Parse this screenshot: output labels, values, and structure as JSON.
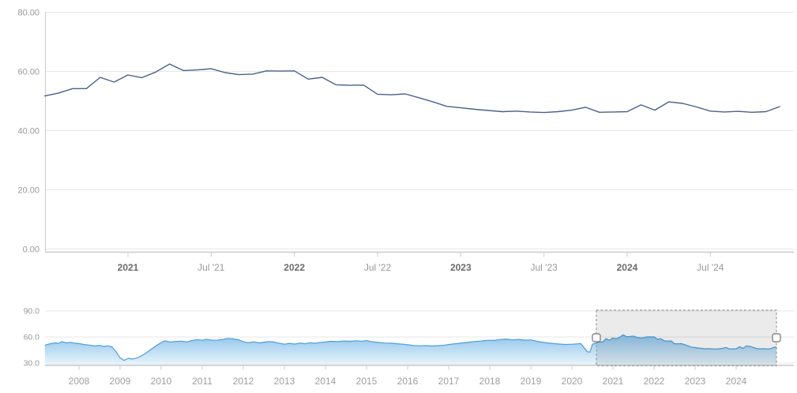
{
  "chart_title": "",
  "colors": {
    "main_line": "#49618a",
    "grid_line": "#e7e7e7",
    "axis_line": "#c9c9c9",
    "tick_line": "#cccccc",
    "label_grey": "#999999",
    "label_year_bold": "#6b6b6b",
    "nav_line": "#4d9eda",
    "nav_fill_top": "#85bfe9",
    "nav_fill_bottom": "#eaf5fc",
    "selection_fill": "rgba(0,0,0,0.08)",
    "selection_border": "#9e9e9e",
    "handle_fill": "#fcfcfc",
    "handle_border": "#878787"
  },
  "chart_data": [
    {
      "type": "line",
      "pane": "main",
      "title": "",
      "xlabel": "",
      "ylabel": "",
      "ylim": [
        0,
        80
      ],
      "grid": true,
      "x_unit": "month",
      "x_start_decimal_year": 2020.5,
      "x_step_decimal_year": 0.083333,
      "x_range_label": "Jul 2020 - Dec 2024",
      "values": [
        51.7,
        52.7,
        54.2,
        54.2,
        58.0,
        56.4,
        58.8,
        57.9,
        59.8,
        62.5,
        60.3,
        60.5,
        60.9,
        59.6,
        58.9,
        59.1,
        60.2,
        60.1,
        60.2,
        57.4,
        58.0,
        55.5,
        55.3,
        55.4,
        52.3,
        52.1,
        52.4,
        51.1,
        49.7,
        48.2,
        47.7,
        47.2,
        46.8,
        46.4,
        46.6,
        46.3,
        46.1,
        46.4,
        46.9,
        47.9,
        46.2,
        46.3,
        46.4,
        48.7,
        46.9,
        49.7,
        49.2,
        48.0,
        46.6,
        46.3,
        46.5,
        46.2,
        46.4,
        48.1
      ],
      "y_ticks": [
        {
          "label": "0.00",
          "v": 0
        },
        {
          "label": "20.00",
          "v": 20
        },
        {
          "label": "40.00",
          "v": 40
        },
        {
          "label": "60.00",
          "v": 60
        },
        {
          "label": "80.00",
          "v": 80
        }
      ],
      "x_ticks": [
        {
          "label": "2021",
          "x": 2021,
          "bold": true
        },
        {
          "label": "Jul '21",
          "x": 2021.5,
          "bold": false
        },
        {
          "label": "2022",
          "x": 2022,
          "bold": true
        },
        {
          "label": "Jul '22",
          "x": 2022.5,
          "bold": false
        },
        {
          "label": "2023",
          "x": 2023,
          "bold": true
        },
        {
          "label": "Jul '23",
          "x": 2023.5,
          "bold": false
        },
        {
          "label": "2024",
          "x": 2024,
          "bold": true
        },
        {
          "label": "Jul '24",
          "x": 2024.5,
          "bold": false
        }
      ]
    },
    {
      "type": "area",
      "pane": "navigator",
      "title": "",
      "ylim_labeled": [
        30,
        90
      ],
      "grid": true,
      "x_unit": "decimal_year",
      "y_ticks": [
        {
          "label": "30.0",
          "v": 30
        },
        {
          "label": "60.0",
          "v": 60
        },
        {
          "label": "90.0",
          "v": 90
        }
      ],
      "x_ticks": [
        {
          "label": "2008",
          "x": 2008
        },
        {
          "label": "2009",
          "x": 2009
        },
        {
          "label": "2010",
          "x": 2010
        },
        {
          "label": "2011",
          "x": 2011
        },
        {
          "label": "2012",
          "x": 2012
        },
        {
          "label": "2013",
          "x": 2013
        },
        {
          "label": "2014",
          "x": 2014
        },
        {
          "label": "2015",
          "x": 2015
        },
        {
          "label": "2016",
          "x": 2016
        },
        {
          "label": "2017",
          "x": 2017
        },
        {
          "label": "2018",
          "x": 2018
        },
        {
          "label": "2019",
          "x": 2019
        },
        {
          "label": "2020",
          "x": 2020
        },
        {
          "label": "2021",
          "x": 2021
        },
        {
          "label": "2022",
          "x": 2022
        },
        {
          "label": "2023",
          "x": 2023
        },
        {
          "label": "2024",
          "x": 2024
        }
      ],
      "points_pre_selection": [
        [
          2007.17,
          50.5
        ],
        [
          2007.3,
          52.2
        ],
        [
          2007.42,
          53.2
        ],
        [
          2007.5,
          52.6
        ],
        [
          2007.58,
          54.6
        ],
        [
          2007.7,
          53.2
        ],
        [
          2007.8,
          53.8
        ],
        [
          2007.9,
          52.8
        ],
        [
          2008.0,
          52.4
        ],
        [
          2008.12,
          51.4
        ],
        [
          2008.25,
          50.6
        ],
        [
          2008.4,
          49.6
        ],
        [
          2008.5,
          50.4
        ],
        [
          2008.6,
          49.2
        ],
        [
          2008.7,
          49.8
        ],
        [
          2008.8,
          48.6
        ],
        [
          2008.88,
          44.5
        ],
        [
          2009.0,
          36.0
        ],
        [
          2009.1,
          33.0
        ],
        [
          2009.2,
          35.4
        ],
        [
          2009.3,
          34.6
        ],
        [
          2009.4,
          35.6
        ],
        [
          2009.5,
          37.6
        ],
        [
          2009.62,
          41.0
        ],
        [
          2009.75,
          45.5
        ],
        [
          2009.88,
          50.0
        ],
        [
          2010.0,
          53.5
        ],
        [
          2010.1,
          55.6
        ],
        [
          2010.22,
          54.2
        ],
        [
          2010.35,
          54.8
        ],
        [
          2010.5,
          55.2
        ],
        [
          2010.62,
          54.4
        ],
        [
          2010.75,
          55.8
        ],
        [
          2010.88,
          57.0
        ],
        [
          2011.0,
          56.2
        ],
        [
          2011.1,
          57.4
        ],
        [
          2011.22,
          56.4
        ],
        [
          2011.35,
          56.2
        ],
        [
          2011.5,
          57.2
        ],
        [
          2011.62,
          58.4
        ],
        [
          2011.75,
          57.8
        ],
        [
          2011.88,
          56.8
        ],
        [
          2012.0,
          54.6
        ],
        [
          2012.12,
          53.4
        ],
        [
          2012.25,
          54.4
        ],
        [
          2012.4,
          53.2
        ],
        [
          2012.5,
          54.0
        ],
        [
          2012.62,
          54.6
        ],
        [
          2012.75,
          54.2
        ],
        [
          2012.88,
          52.8
        ],
        [
          2013.0,
          51.6
        ],
        [
          2013.12,
          52.6
        ],
        [
          2013.25,
          51.8
        ],
        [
          2013.4,
          53.0
        ],
        [
          2013.5,
          52.2
        ],
        [
          2013.62,
          53.4
        ],
        [
          2013.75,
          52.8
        ],
        [
          2013.88,
          53.8
        ],
        [
          2014.0,
          54.2
        ],
        [
          2014.12,
          55.0
        ],
        [
          2014.3,
          54.6
        ],
        [
          2014.45,
          55.4
        ],
        [
          2014.6,
          55.0
        ],
        [
          2014.75,
          55.6
        ],
        [
          2014.9,
          55.2
        ],
        [
          2015.0,
          55.8
        ],
        [
          2015.12,
          54.6
        ],
        [
          2015.3,
          53.6
        ],
        [
          2015.45,
          53.0
        ],
        [
          2015.6,
          52.8
        ],
        [
          2015.75,
          52.2
        ],
        [
          2015.9,
          51.6
        ],
        [
          2016.0,
          51.0
        ],
        [
          2016.15,
          50.2
        ],
        [
          2016.3,
          49.8
        ],
        [
          2016.45,
          50.2
        ],
        [
          2016.6,
          49.6
        ],
        [
          2016.75,
          50.0
        ],
        [
          2016.9,
          50.6
        ],
        [
          2017.05,
          51.6
        ],
        [
          2017.2,
          52.4
        ],
        [
          2017.35,
          53.2
        ],
        [
          2017.5,
          54.0
        ],
        [
          2017.65,
          54.8
        ],
        [
          2017.8,
          55.4
        ],
        [
          2017.95,
          56.2
        ],
        [
          2018.1,
          56.0
        ],
        [
          2018.25,
          57.0
        ],
        [
          2018.4,
          57.6
        ],
        [
          2018.55,
          56.6
        ],
        [
          2018.7,
          57.2
        ],
        [
          2018.85,
          56.4
        ],
        [
          2019.0,
          56.6
        ],
        [
          2019.12,
          55.4
        ],
        [
          2019.25,
          54.2
        ],
        [
          2019.4,
          53.2
        ],
        [
          2019.55,
          52.4
        ],
        [
          2019.7,
          51.8
        ],
        [
          2019.85,
          51.4
        ],
        [
          2020.0,
          51.6
        ],
        [
          2020.12,
          52.0
        ],
        [
          2020.22,
          52.4
        ],
        [
          2020.3,
          47.5
        ],
        [
          2020.38,
          43.0
        ],
        [
          2020.44,
          42.5
        ]
      ],
      "continues_with_main_series": true,
      "end_point": [
        2024.98,
        48.3
      ],
      "selection": {
        "x_from": 2020.596,
        "x_to": 2024.981,
        "handles": [
          "left",
          "right"
        ]
      }
    }
  ]
}
